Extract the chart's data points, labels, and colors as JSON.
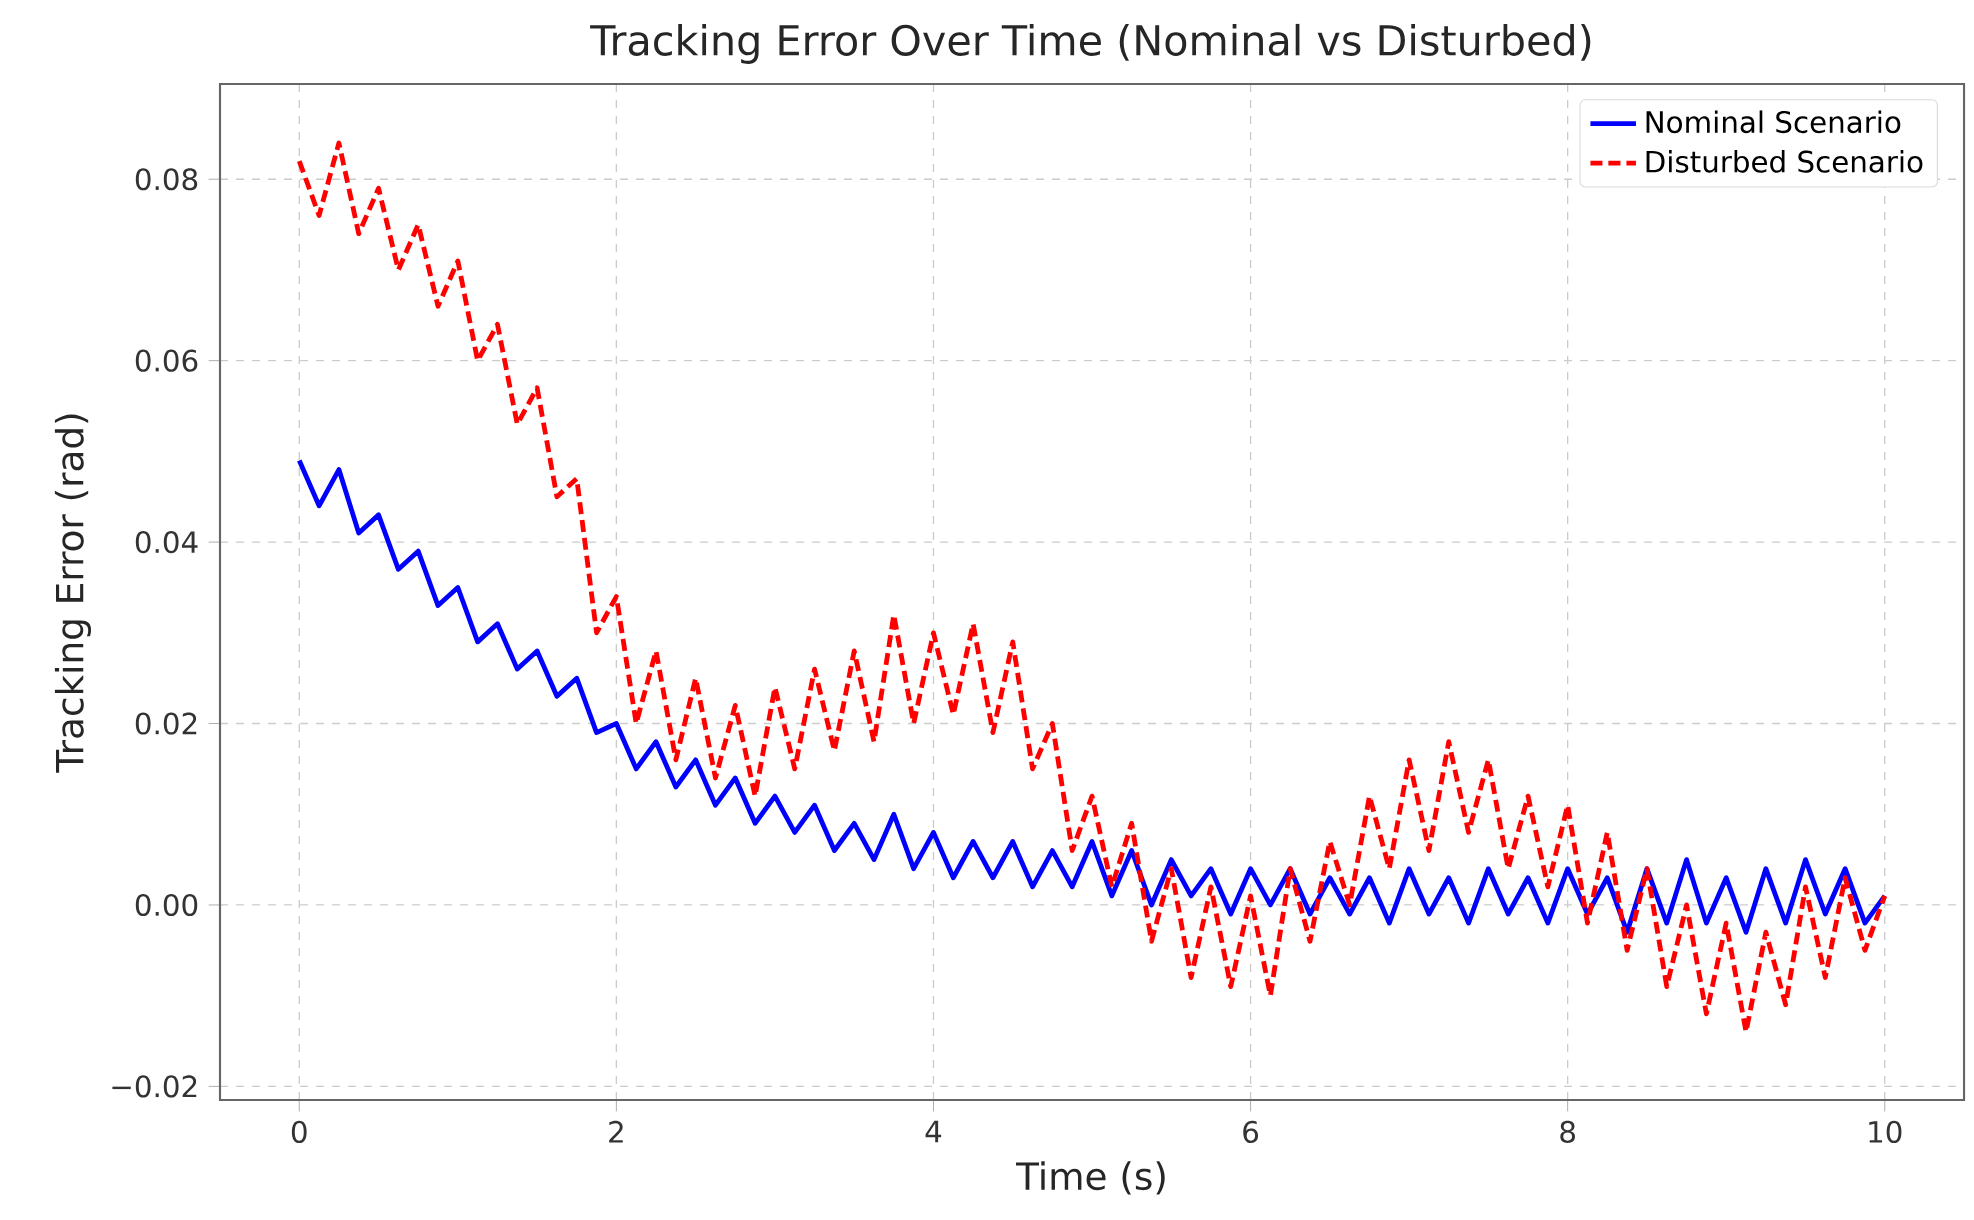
{
  "chart_data": {
    "type": "line",
    "title": "Tracking Error Over Time (Nominal vs Disturbed)",
    "xlabel": "Time (s)",
    "ylabel": "Tracking Error (rad)",
    "xlim": [
      -0.5,
      10.5
    ],
    "ylim": [
      -0.0215,
      0.0905
    ],
    "xticks": [
      0,
      2,
      4,
      6,
      8,
      10
    ],
    "yticks": [
      {
        "value": -0.02,
        "label": "−0.02"
      },
      {
        "value": 0.0,
        "label": "0.00"
      },
      {
        "value": 0.02,
        "label": "0.02"
      },
      {
        "value": 0.04,
        "label": "0.04"
      },
      {
        "value": 0.06,
        "label": "0.06"
      },
      {
        "value": 0.08,
        "label": "0.08"
      }
    ],
    "grid": true,
    "legend": "top right",
    "marker": "none",
    "x": [
      0,
      0.125,
      0.25,
      0.375,
      0.5,
      0.625,
      0.75,
      0.875,
      1,
      1.125,
      1.25,
      1.375,
      1.5,
      1.625,
      1.75,
      1.875,
      2,
      2.125,
      2.25,
      2.375,
      2.5,
      2.625,
      2.75,
      2.875,
      3,
      3.125,
      3.25,
      3.375,
      3.5,
      3.625,
      3.75,
      3.875,
      4,
      4.125,
      4.25,
      4.375,
      4.5,
      4.625,
      4.75,
      4.875,
      5,
      5.125,
      5.25,
      5.375,
      5.5,
      5.625,
      5.75,
      5.875,
      6,
      6.125,
      6.25,
      6.375,
      6.5,
      6.625,
      6.75,
      6.875,
      7,
      7.125,
      7.25,
      7.375,
      7.5,
      7.625,
      7.75,
      7.875,
      8,
      8.125,
      8.25,
      8.375,
      8.5,
      8.625,
      8.75,
      8.875,
      9,
      9.125,
      9.25,
      9.375,
      9.5,
      9.625,
      9.75,
      9.875,
      10
    ],
    "series": [
      {
        "name": "Nominal Scenario",
        "color": "#0000ff",
        "line_style": "solid",
        "values": [
          0.049,
          0.044,
          0.048,
          0.041,
          0.043,
          0.037,
          0.039,
          0.033,
          0.035,
          0.029,
          0.031,
          0.026,
          0.028,
          0.023,
          0.025,
          0.019,
          0.02,
          0.015,
          0.018,
          0.013,
          0.016,
          0.011,
          0.014,
          0.009,
          0.012,
          0.008,
          0.011,
          0.006,
          0.009,
          0.005,
          0.01,
          0.004,
          0.008,
          0.003,
          0.007,
          0.003,
          0.007,
          0.002,
          0.006,
          0.002,
          0.007,
          0.001,
          0.006,
          0.0,
          0.005,
          0.001,
          0.004,
          -0.001,
          0.004,
          0.0,
          0.004,
          -0.001,
          0.003,
          -0.001,
          0.003,
          -0.002,
          0.004,
          -0.001,
          0.003,
          -0.002,
          0.004,
          -0.001,
          0.003,
          -0.002,
          0.004,
          -0.001,
          0.003,
          -0.003,
          0.004,
          -0.002,
          0.005,
          -0.002,
          0.003,
          -0.003,
          0.004,
          -0.002,
          0.005,
          -0.001,
          0.004,
          -0.002,
          0.001
        ]
      },
      {
        "name": "Disturbed Scenario",
        "color": "#ff0000",
        "line_style": "dashed",
        "values": [
          0.082,
          0.076,
          0.084,
          0.074,
          0.079,
          0.07,
          0.075,
          0.066,
          0.071,
          0.06,
          0.064,
          0.053,
          0.057,
          0.045,
          0.047,
          0.03,
          0.034,
          0.02,
          0.028,
          0.016,
          0.025,
          0.014,
          0.022,
          0.012,
          0.024,
          0.015,
          0.026,
          0.017,
          0.028,
          0.018,
          0.032,
          0.02,
          0.03,
          0.021,
          0.031,
          0.019,
          0.029,
          0.015,
          0.02,
          0.006,
          0.012,
          0.002,
          0.009,
          -0.004,
          0.004,
          -0.008,
          0.002,
          -0.009,
          0.001,
          -0.01,
          0.004,
          -0.004,
          0.007,
          0.0,
          0.012,
          0.004,
          0.016,
          0.006,
          0.018,
          0.008,
          0.016,
          0.004,
          0.012,
          0.002,
          0.011,
          -0.002,
          0.008,
          -0.005,
          0.004,
          -0.009,
          0.0,
          -0.012,
          -0.002,
          -0.014,
          -0.003,
          -0.011,
          0.002,
          -0.008,
          0.003,
          -0.005,
          0.001
        ]
      }
    ]
  }
}
